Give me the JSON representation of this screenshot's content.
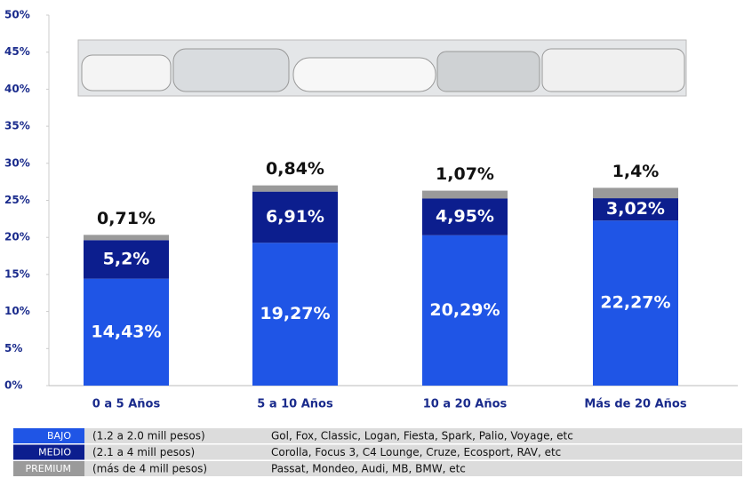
{
  "chart_data": {
    "type": "stacked_bar",
    "categories": [
      "0 a 5 Años",
      "5 a 10 Años",
      "10 a 20 Años",
      "Más de 20 Años"
    ],
    "series": [
      {
        "name": "BAJO",
        "color": "#1f55e6",
        "range": "(1.2 a 2.0 mill pesos)",
        "examples": "Gol, Fox, Classic, Logan, Fiesta, Spark, Palio, Voyage, etc",
        "values": [
          14.43,
          19.27,
          20.29,
          22.27
        ],
        "value_labels": [
          "14,43%",
          "19,27%",
          "20,29%",
          "22,27%"
        ]
      },
      {
        "name": "MEDIO",
        "color": "#0c1e8e",
        "range": "(2.1 a 4 mill pesos)",
        "examples": "Corolla, Focus 3, C4 Lounge, Cruze, Ecosport, RAV, etc",
        "values": [
          5.2,
          6.91,
          4.95,
          3.02
        ],
        "value_labels": [
          "5,2%",
          "6,91%",
          "4,95%",
          "3,02%"
        ]
      },
      {
        "name": "PREMIUM",
        "color": "#9a9a9a",
        "range": "(más de 4 mill pesos)",
        "examples": "Passat, Mondeo, Audi, MB, BMW, etc",
        "values": [
          0.71,
          0.84,
          1.07,
          1.4
        ],
        "value_labels": [
          "0,71%",
          "0,84%",
          "1,07%",
          "1,4%"
        ]
      }
    ],
    "ylim": [
      0,
      50
    ],
    "yticks": [
      {
        "value": 0,
        "label": "0%"
      },
      {
        "value": 5,
        "label": "5%"
      },
      {
        "value": 10,
        "label": "10%"
      },
      {
        "value": 15,
        "label": "15%"
      },
      {
        "value": 20,
        "label": "20%"
      },
      {
        "value": 25,
        "label": "25%"
      },
      {
        "value": 30,
        "label": "30%"
      },
      {
        "value": 35,
        "label": "35%"
      },
      {
        "value": 40,
        "label": "40%"
      },
      {
        "value": 45,
        "label": "45%"
      },
      {
        "value": 50,
        "label": "50%"
      }
    ]
  }
}
